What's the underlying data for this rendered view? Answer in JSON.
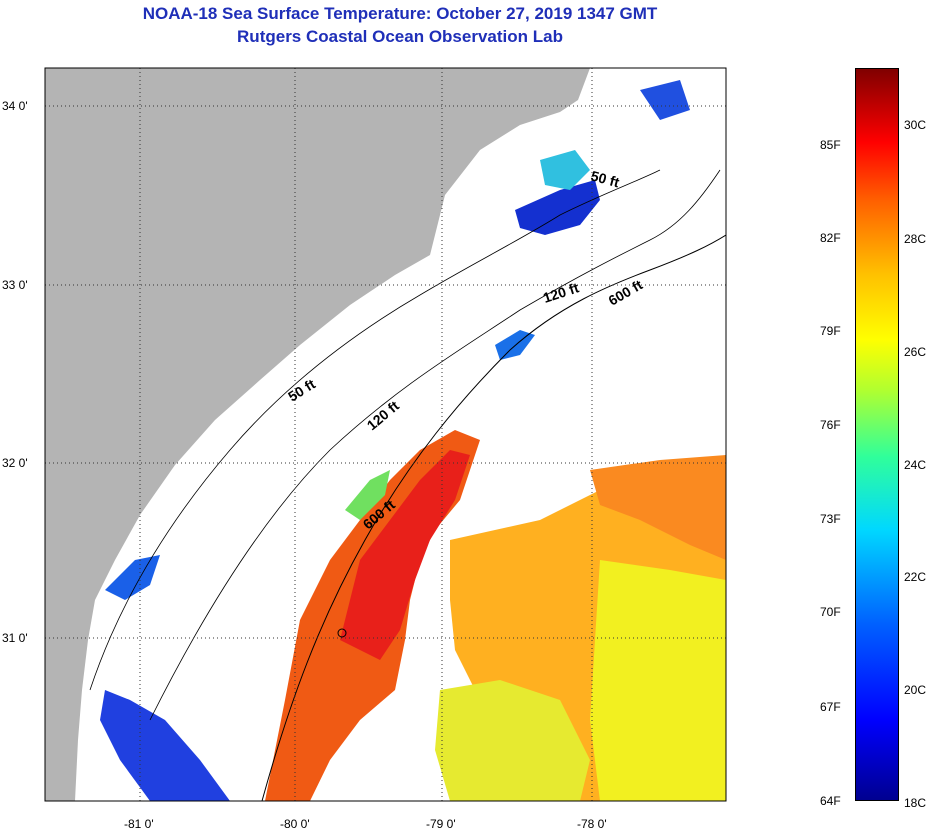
{
  "header": {
    "title": "NOAA-18 Sea Surface Temperature:  October 27, 2019 1347 GMT",
    "subtitle": "Rutgers Coastal Ocean Observation Lab"
  },
  "map": {
    "lon_ticks": [
      "-81 0'",
      "-80 0'",
      "-79 0'",
      "-78 0'"
    ],
    "lat_ticks": [
      "34 0'",
      "33 0'",
      "32 0'",
      "31 0'"
    ],
    "depth_labels": [
      "50 ft",
      "120 ft",
      "600 ft",
      "50 ft",
      "120 ft",
      "600 ft"
    ],
    "colors": {
      "land": "#b4b4b4",
      "title": "#1f2fb8"
    }
  },
  "colorbar": {
    "fahrenheit": [
      "85F",
      "82F",
      "79F",
      "76F",
      "73F",
      "70F",
      "67F",
      "64F"
    ],
    "celsius": [
      "30C",
      "28C",
      "26C",
      "24C",
      "22C",
      "20C",
      "18C"
    ]
  }
}
